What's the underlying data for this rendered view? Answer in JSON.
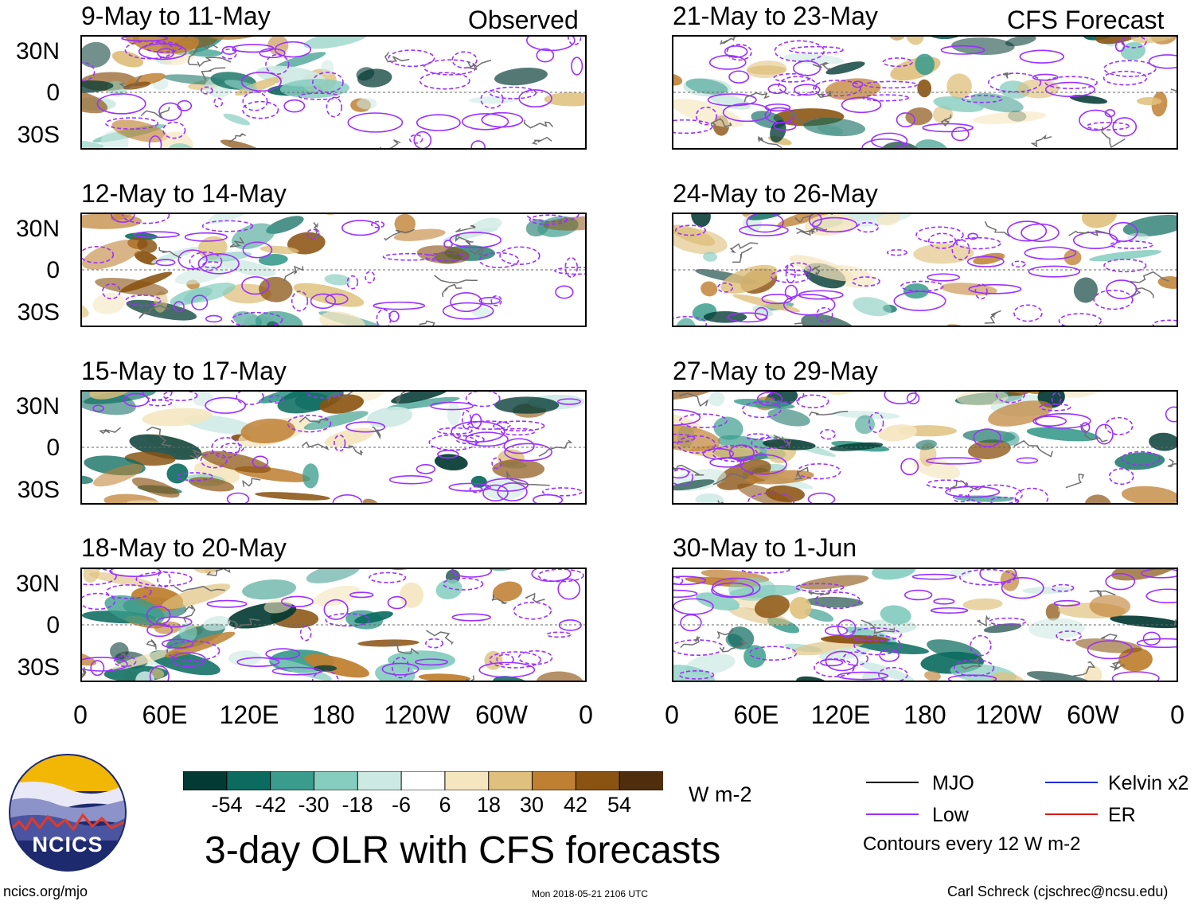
{
  "panels_left_header": "Observed",
  "panels_right_header": "CFS Forecast",
  "panels_left": [
    {
      "title": "9-May to 11-May"
    },
    {
      "title": "12-May to 14-May"
    },
    {
      "title": "15-May to 17-May"
    },
    {
      "title": "18-May to 20-May"
    }
  ],
  "panels_right": [
    {
      "title": "21-May to 23-May"
    },
    {
      "title": "24-May to 26-May"
    },
    {
      "title": "27-May to 29-May"
    },
    {
      "title": "30-May to 1-Jun"
    }
  ],
  "lat_labels": [
    "30N",
    "0",
    "30S"
  ],
  "lon_labels": [
    "0",
    "60E",
    "120E",
    "180",
    "120W",
    "60W",
    "0"
  ],
  "colorbar": {
    "unit": "W m-2",
    "tick_labels": [
      "-54",
      "-42",
      "-30",
      "-18",
      "-6",
      "6",
      "18",
      "30",
      "42",
      "54"
    ],
    "colors": [
      "#033a33",
      "#0b6b5e",
      "#3a9c8c",
      "#86cdbf",
      "#cde9e3",
      "#ffffff",
      "#f5e6bf",
      "#dfc07c",
      "#bf8032",
      "#8a5311",
      "#4f2e0d"
    ]
  },
  "legend": {
    "items": [
      {
        "label": "MJO",
        "color": "#000000"
      },
      {
        "label": "Kelvin x2",
        "color": "#1f2fcf"
      },
      {
        "label": "Low",
        "color": "#9b30ff"
      },
      {
        "label": "ER",
        "color": "#d81818"
      }
    ],
    "note": "Contours every 12 W m-2"
  },
  "main_title": "3-day OLR with CFS forecasts",
  "logo_text": "NCICS",
  "footer": {
    "left": "ncics.org/mjo",
    "center": "Mon 2018-05-21 2106 UTC",
    "right": "Carl Schreck (cjschrec@ncsu.edu)"
  }
}
